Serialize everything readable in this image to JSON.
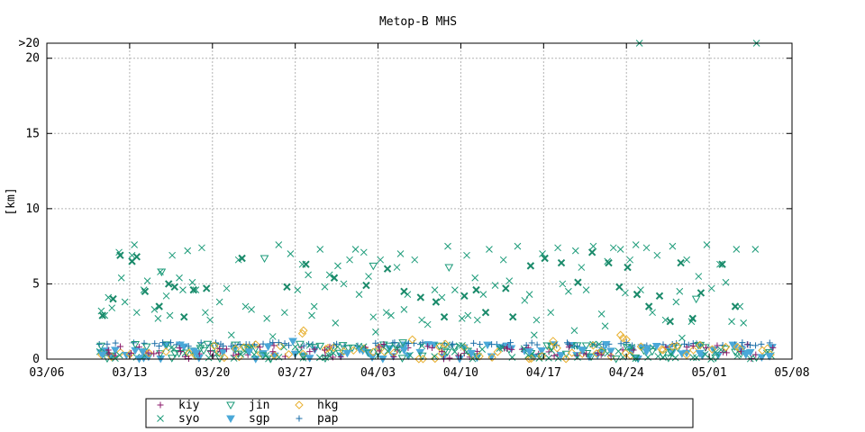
{
  "chart_data": {
    "type": "scatter",
    "title": "Metop-B MHS",
    "xlabel": "",
    "ylabel": "[km]",
    "x_ticks": [
      "03/06",
      "03/13",
      "03/20",
      "03/27",
      "04/03",
      "04/10",
      "04/17",
      "04/24",
      "05/01",
      "05/08"
    ],
    "x_range_days": [
      0,
      63
    ],
    "x_start_label": "03/06",
    "y_ticks": [
      "0",
      "5",
      "10",
      "15",
      "20",
      ">20"
    ],
    "y_range": [
      0,
      21
    ],
    "grid": true,
    "legend_position": "bottom",
    "series": [
      {
        "name": "kiy",
        "marker": "plus",
        "color": "#8b1a6b",
        "kind": "low",
        "points": [
          [
            5.2,
            0.6
          ],
          [
            7.8,
            0.8
          ],
          [
            11.3,
            0.5
          ],
          [
            14.6,
            0.7
          ],
          [
            19.2,
            0.9
          ],
          [
            23.5,
            0.6
          ],
          [
            28.1,
            0.8
          ],
          [
            33.4,
            0.5
          ],
          [
            38.9,
            0.7
          ],
          [
            44.2,
            0.9
          ],
          [
            49.6,
            0.6
          ],
          [
            54.1,
            0.8
          ],
          [
            58.7,
            0.5
          ]
        ]
      },
      {
        "name": "syo",
        "marker": "x",
        "color": "#1a9a78",
        "kind": "high",
        "points": [
          [
            4.6,
            3.2
          ],
          [
            4.9,
            2.9
          ],
          [
            5.2,
            4.1
          ],
          [
            5.5,
            3.4
          ],
          [
            6.1,
            7.1
          ],
          [
            6.3,
            5.4
          ],
          [
            6.6,
            3.8
          ],
          [
            7.2,
            6.9
          ],
          [
            7.4,
            7.6
          ],
          [
            7.6,
            3.1
          ],
          [
            8.2,
            4.6
          ],
          [
            8.5,
            5.2
          ],
          [
            9.1,
            3.3
          ],
          [
            9.4,
            2.7
          ],
          [
            9.6,
            5.8
          ],
          [
            10.1,
            4.2
          ],
          [
            10.4,
            2.9
          ],
          [
            10.6,
            6.9
          ],
          [
            11.2,
            5.4
          ],
          [
            11.5,
            4.6
          ],
          [
            11.9,
            7.2
          ],
          [
            12.3,
            5.1
          ],
          [
            12.6,
            4.6
          ],
          [
            13.1,
            7.4
          ],
          [
            13.4,
            3.1
          ],
          [
            13.8,
            2.6
          ],
          [
            14.6,
            3.8
          ],
          [
            15.2,
            4.7
          ],
          [
            16.2,
            6.6
          ],
          [
            17.3,
            3.3
          ],
          [
            18.6,
            2.7
          ],
          [
            19.6,
            7.6
          ],
          [
            20.1,
            3.1
          ],
          [
            20.6,
            7.0
          ],
          [
            21.2,
            4.6
          ],
          [
            21.6,
            6.3
          ],
          [
            22.1,
            5.6
          ],
          [
            22.4,
            2.9
          ],
          [
            23.1,
            7.3
          ],
          [
            23.5,
            4.8
          ],
          [
            23.9,
            5.6
          ],
          [
            24.4,
            2.4
          ],
          [
            24.6,
            6.2
          ],
          [
            25.1,
            5.0
          ],
          [
            25.6,
            6.6
          ],
          [
            26.1,
            7.3
          ],
          [
            26.4,
            4.3
          ],
          [
            26.8,
            7.1
          ],
          [
            27.2,
            5.5
          ],
          [
            27.6,
            2.8
          ],
          [
            28.2,
            6.6
          ],
          [
            28.7,
            3.1
          ],
          [
            29.1,
            2.9
          ],
          [
            29.6,
            6.1
          ],
          [
            29.9,
            7.0
          ],
          [
            30.5,
            4.3
          ],
          [
            31.1,
            6.6
          ],
          [
            31.7,
            2.6
          ],
          [
            32.2,
            2.3
          ],
          [
            32.8,
            4.6
          ],
          [
            33.4,
            4.1
          ],
          [
            33.9,
            7.5
          ],
          [
            34.5,
            4.6
          ],
          [
            35.1,
            2.7
          ],
          [
            35.5,
            6.9
          ],
          [
            36.2,
            5.4
          ],
          [
            36.9,
            4.3
          ],
          [
            37.4,
            7.3
          ],
          [
            37.9,
            4.9
          ],
          [
            38.6,
            6.6
          ],
          [
            39.1,
            5.2
          ],
          [
            39.8,
            7.5
          ],
          [
            40.4,
            3.9
          ],
          [
            40.8,
            4.3
          ],
          [
            41.4,
            2.6
          ],
          [
            41.9,
            7.0
          ],
          [
            42.6,
            3.1
          ],
          [
            43.2,
            7.4
          ],
          [
            43.6,
            5.0
          ],
          [
            44.1,
            4.5
          ],
          [
            44.7,
            7.2
          ],
          [
            45.2,
            6.1
          ],
          [
            45.6,
            4.6
          ],
          [
            46.2,
            7.5
          ],
          [
            46.9,
            3.0
          ],
          [
            47.4,
            6.5
          ],
          [
            47.9,
            7.4
          ],
          [
            48.5,
            7.3
          ],
          [
            48.9,
            4.4
          ],
          [
            49.3,
            6.6
          ],
          [
            49.8,
            7.6
          ],
          [
            50.2,
            4.6
          ],
          [
            50.7,
            7.4
          ],
          [
            51.2,
            3.1
          ],
          [
            51.6,
            6.9
          ],
          [
            52.3,
            2.6
          ],
          [
            52.9,
            7.5
          ],
          [
            53.5,
            4.5
          ],
          [
            54.1,
            6.6
          ],
          [
            54.5,
            2.5
          ],
          [
            55.1,
            5.5
          ],
          [
            55.8,
            7.6
          ],
          [
            56.2,
            4.7
          ],
          [
            56.9,
            6.3
          ],
          [
            57.4,
            5.1
          ],
          [
            57.9,
            2.5
          ],
          [
            58.3,
            7.3
          ],
          [
            58.9,
            2.4
          ],
          [
            59.9,
            7.3
          ],
          [
            35.6,
            2.9
          ],
          [
            30.2,
            3.3
          ],
          [
            22.6,
            3.5
          ],
          [
            16.8,
            3.5
          ],
          [
            47.2,
            2.2
          ],
          [
            53.2,
            3.8
          ],
          [
            36.4,
            2.6
          ],
          [
            58.6,
            3.5
          ],
          [
            60.0,
            21.0
          ],
          [
            50.1,
            21.0
          ],
          [
            15.6,
            1.6
          ],
          [
            27.8,
            1.8
          ],
          [
            41.2,
            1.6
          ],
          [
            44.6,
            1.9
          ],
          [
            53.7,
            1.4
          ],
          [
            19.1,
            1.5
          ]
        ]
      },
      {
        "name": "syo_bold",
        "marker": "xbold",
        "color": "#1a8a6a",
        "kind": "high",
        "points": [
          [
            4.7,
            2.9
          ],
          [
            5.6,
            4.0
          ],
          [
            6.2,
            6.9
          ],
          [
            7.2,
            6.5
          ],
          [
            7.6,
            6.8
          ],
          [
            8.3,
            4.5
          ],
          [
            9.5,
            3.5
          ],
          [
            10.3,
            5.0
          ],
          [
            10.8,
            4.8
          ],
          [
            11.6,
            2.8
          ],
          [
            12.4,
            4.6
          ],
          [
            13.5,
            4.7
          ],
          [
            16.5,
            6.7
          ],
          [
            20.3,
            4.8
          ],
          [
            21.9,
            6.3
          ],
          [
            24.3,
            5.4
          ],
          [
            27.0,
            4.9
          ],
          [
            28.8,
            6.0
          ],
          [
            30.2,
            4.5
          ],
          [
            31.6,
            4.1
          ],
          [
            32.9,
            3.8
          ],
          [
            33.6,
            2.8
          ],
          [
            35.3,
            4.2
          ],
          [
            36.3,
            4.6
          ],
          [
            37.1,
            3.1
          ],
          [
            38.8,
            4.7
          ],
          [
            39.4,
            2.8
          ],
          [
            40.9,
            6.2
          ],
          [
            42.1,
            6.7
          ],
          [
            43.5,
            6.4
          ],
          [
            44.9,
            5.1
          ],
          [
            46.1,
            7.1
          ],
          [
            47.5,
            6.4
          ],
          [
            48.4,
            4.8
          ],
          [
            49.1,
            6.1
          ],
          [
            49.9,
            4.3
          ],
          [
            50.9,
            3.5
          ],
          [
            51.8,
            4.2
          ],
          [
            52.7,
            2.5
          ],
          [
            53.6,
            6.4
          ],
          [
            54.6,
            2.7
          ],
          [
            55.3,
            4.4
          ],
          [
            57.1,
            6.3
          ],
          [
            58.2,
            3.5
          ]
        ]
      },
      {
        "name": "jin",
        "marker": "tri",
        "color": "#1a9a78",
        "kind": "low",
        "points": [
          [
            9.7,
            5.8
          ],
          [
            18.4,
            6.7
          ],
          [
            21.4,
            1.0
          ],
          [
            27.6,
            6.2
          ],
          [
            34.0,
            6.1
          ],
          [
            42.3,
            0.9
          ],
          [
            54.9,
            4.0
          ],
          [
            45.6,
            0.9
          ],
          [
            30.1,
            1.1
          ],
          [
            13.6,
            1.0
          ]
        ]
      },
      {
        "name": "sgp",
        "marker": "trifill",
        "color": "#4aa8d8",
        "kind": "low",
        "points": [
          [
            4.7,
            0.3
          ],
          [
            8.1,
            0.5
          ],
          [
            12.6,
            0.4
          ],
          [
            17.1,
            0.5
          ],
          [
            20.8,
            1.2
          ],
          [
            25.4,
            0.4
          ],
          [
            30.2,
            0.6
          ],
          [
            35.9,
            0.4
          ],
          [
            40.8,
            0.5
          ],
          [
            45.3,
            0.6
          ],
          [
            50.7,
            0.5
          ],
          [
            55.2,
            0.4
          ],
          [
            59.1,
            0.3
          ],
          [
            61.1,
            0.2
          ]
        ]
      },
      {
        "name": "hkg",
        "marker": "diamond",
        "color": "#e8b030",
        "kind": "low",
        "points": [
          [
            21.6,
            1.7
          ],
          [
            21.7,
            1.9
          ],
          [
            30.9,
            1.3
          ],
          [
            33.7,
            1.0
          ],
          [
            42.8,
            1.2
          ],
          [
            48.5,
            1.6
          ],
          [
            48.7,
            1.4
          ],
          [
            49.0,
            1.3
          ],
          [
            52.1,
            0.6
          ],
          [
            57.4,
            0.8
          ]
        ]
      },
      {
        "name": "pap",
        "marker": "plus",
        "color": "#1a6ea8",
        "kind": "low",
        "points": [
          [
            5.1,
            1.0
          ],
          [
            9.8,
            1.1
          ],
          [
            14.7,
            1.0
          ],
          [
            19.6,
            1.1
          ],
          [
            24.5,
            1.0
          ],
          [
            29.4,
            1.1
          ],
          [
            34.3,
            1.0
          ],
          [
            39.2,
            1.1
          ],
          [
            44.1,
            1.0
          ],
          [
            49.0,
            1.1
          ],
          [
            53.9,
            1.0
          ],
          [
            58.8,
            1.1
          ]
        ]
      }
    ],
    "legend": [
      {
        "name": "kiy",
        "marker": "plus",
        "color": "#8b1a6b"
      },
      {
        "name": "jin",
        "marker": "tri",
        "color": "#1a9a78"
      },
      {
        "name": "hkg",
        "marker": "diamond",
        "color": "#e8b030"
      },
      {
        "name": "syo",
        "marker": "x",
        "color": "#1a9a78"
      },
      {
        "name": "sgp",
        "marker": "trifill",
        "color": "#4aa8d8"
      },
      {
        "name": "pap",
        "marker": "plus",
        "color": "#1a6ea8"
      }
    ]
  }
}
